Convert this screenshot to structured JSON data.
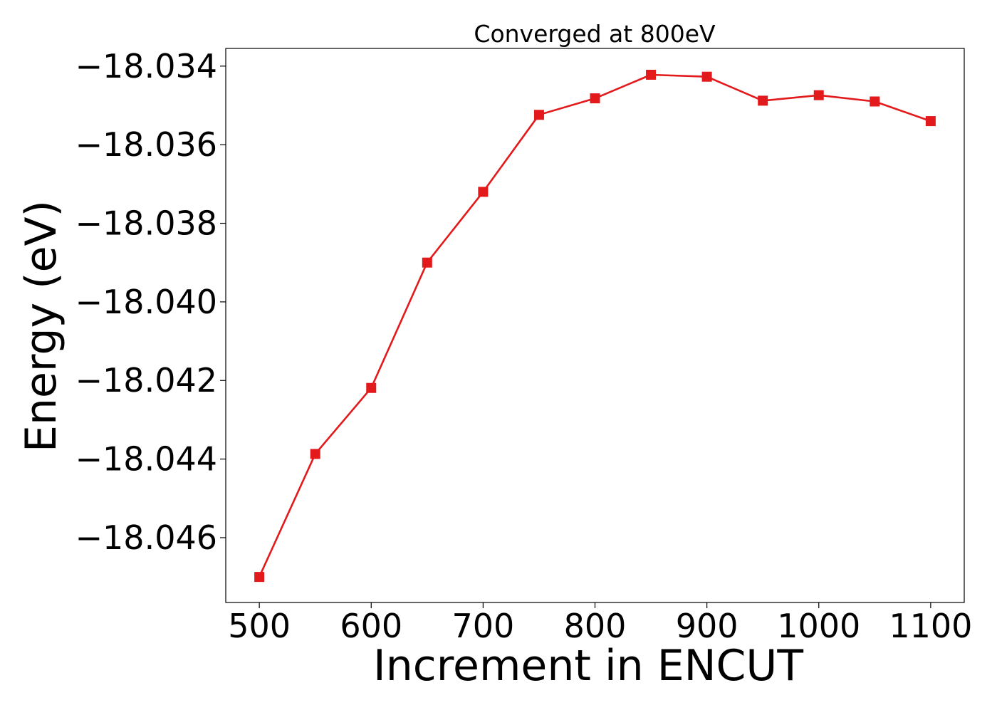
{
  "chart_data": {
    "type": "line",
    "title": "Converged at 800eV",
    "xlabel": "Increment in ENCUT",
    "ylabel": "Energy (eV)",
    "x": [
      500,
      550,
      600,
      650,
      700,
      750,
      800,
      850,
      900,
      950,
      1000,
      1050,
      1100
    ],
    "series": [
      {
        "values": [
          -18.047,
          -18.04387,
          -18.04219,
          -18.039,
          -18.0372,
          -18.03524,
          -18.03482,
          -18.03422,
          -18.03427,
          -18.03488,
          -18.03474,
          -18.0349,
          -18.0354
        ],
        "color": "#e31a1c",
        "marker": "square"
      }
    ],
    "xticks": [
      500,
      600,
      700,
      800,
      900,
      1000,
      1100
    ],
    "xtick_labels": [
      "500",
      "600",
      "700",
      "800",
      "900",
      "1000",
      "1100"
    ],
    "yticks": [
      -18.046,
      -18.044,
      -18.042,
      -18.04,
      -18.038,
      -18.036,
      -18.034
    ],
    "ytick_labels": [
      "−18.046",
      "−18.044",
      "−18.042",
      "−18.040",
      "−18.038",
      "−18.036",
      "−18.034"
    ],
    "xlim": [
      470,
      1130
    ],
    "ylim": [
      -18.04765,
      -18.03355
    ],
    "grid": false,
    "legend": false
  }
}
